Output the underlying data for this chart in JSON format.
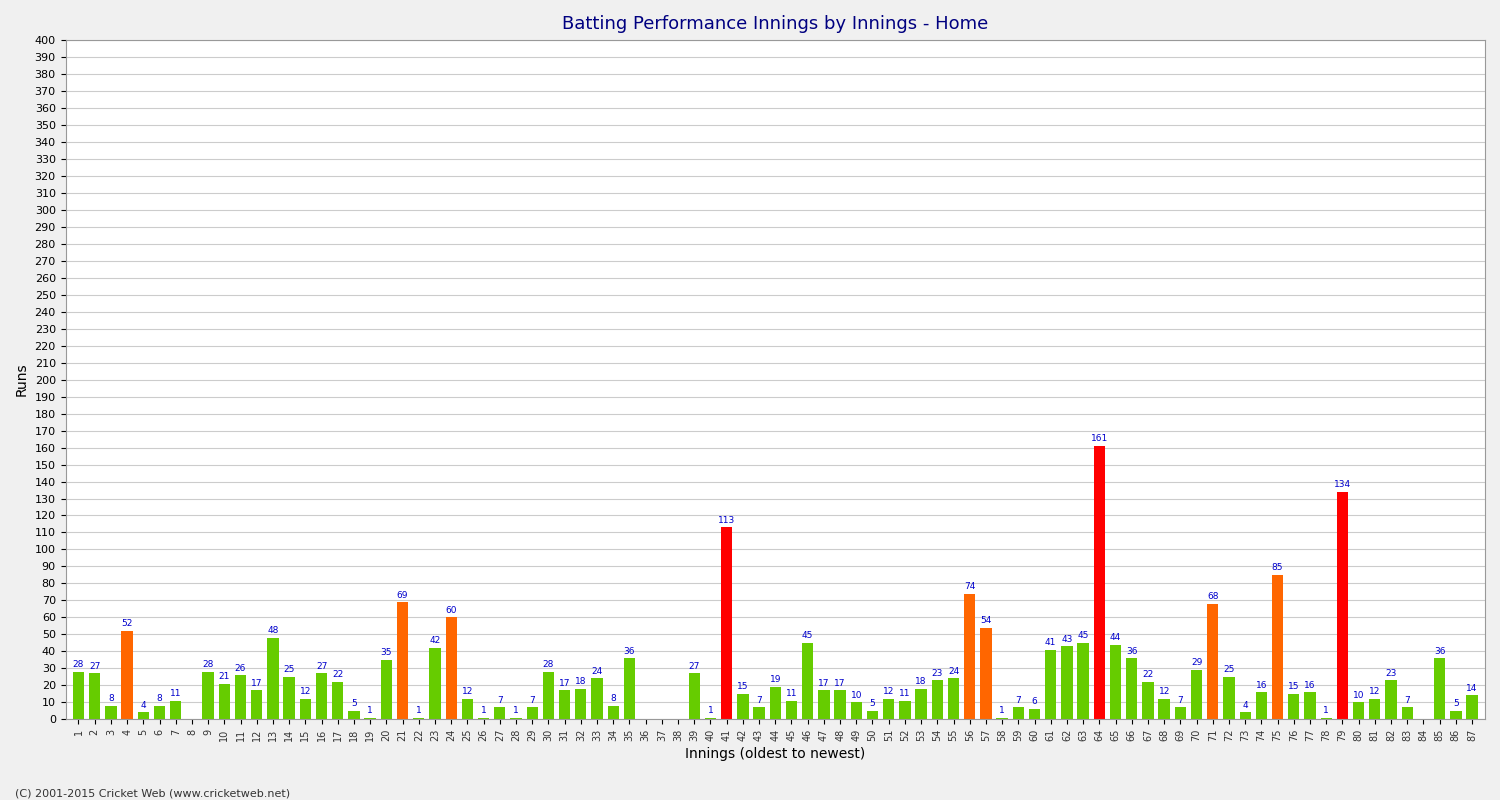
{
  "title": "Batting Performance Innings by Innings - Home",
  "xlabel": "Innings (oldest to newest)",
  "ylabel": "Runs",
  "footer": "(C) 2001-2015 Cricket Web (www.cricketweb.net)",
  "innings": [
    1,
    2,
    3,
    4,
    5,
    6,
    7,
    8,
    9,
    10,
    11,
    12,
    13,
    14,
    15,
    16,
    17,
    18,
    19,
    20,
    21,
    22,
    23,
    24,
    25,
    26,
    27,
    28,
    29,
    30,
    31,
    32,
    33,
    34,
    35,
    36,
    37,
    38,
    39,
    40,
    41,
    42,
    43,
    44,
    45,
    46,
    47,
    48,
    49,
    50,
    51,
    52,
    53,
    54,
    55,
    56,
    57,
    58,
    59,
    60,
    61,
    62,
    63,
    64,
    65,
    66,
    67,
    68,
    69,
    70,
    71,
    72,
    73,
    74,
    75,
    76,
    77,
    78,
    79,
    80,
    81,
    82,
    83,
    84,
    85,
    86,
    87
  ],
  "scores": [
    28,
    27,
    8,
    52,
    4,
    8,
    11,
    0,
    28,
    21,
    26,
    17,
    48,
    25,
    12,
    27,
    22,
    5,
    1,
    35,
    69,
    1,
    42,
    60,
    12,
    1,
    7,
    1,
    7,
    28,
    17,
    18,
    24,
    8,
    36,
    0,
    0,
    0,
    27,
    1,
    113,
    15,
    7,
    19,
    11,
    45,
    17,
    17,
    10,
    5,
    12,
    11,
    18,
    23,
    24,
    74,
    54,
    1,
    7,
    6,
    41,
    43,
    45,
    161,
    44,
    36,
    22,
    12,
    7,
    29,
    68,
    25,
    4,
    16,
    85,
    15,
    16,
    1,
    134,
    10,
    12,
    23,
    7,
    0,
    36,
    5,
    14
  ],
  "colors": [
    "#66cc00",
    "#66cc00",
    "#66cc00",
    "#ff6600",
    "#66cc00",
    "#66cc00",
    "#66cc00",
    "#66cc00",
    "#66cc00",
    "#66cc00",
    "#66cc00",
    "#66cc00",
    "#66cc00",
    "#66cc00",
    "#66cc00",
    "#66cc00",
    "#66cc00",
    "#66cc00",
    "#66cc00",
    "#66cc00",
    "#ff6600",
    "#66cc00",
    "#66cc00",
    "#ff6600",
    "#66cc00",
    "#66cc00",
    "#66cc00",
    "#66cc00",
    "#66cc00",
    "#66cc00",
    "#66cc00",
    "#66cc00",
    "#66cc00",
    "#66cc00",
    "#66cc00",
    "#66cc00",
    "#66cc00",
    "#66cc00",
    "#66cc00",
    "#66cc00",
    "#ff0000",
    "#66cc00",
    "#66cc00",
    "#66cc00",
    "#66cc00",
    "#66cc00",
    "#66cc00",
    "#66cc00",
    "#66cc00",
    "#66cc00",
    "#66cc00",
    "#66cc00",
    "#66cc00",
    "#66cc00",
    "#66cc00",
    "#ff6600",
    "#ff6600",
    "#66cc00",
    "#66cc00",
    "#66cc00",
    "#66cc00",
    "#66cc00",
    "#66cc00",
    "#ff0000",
    "#66cc00",
    "#66cc00",
    "#66cc00",
    "#66cc00",
    "#66cc00",
    "#66cc00",
    "#ff6600",
    "#66cc00",
    "#66cc00",
    "#66cc00",
    "#ff6600",
    "#66cc00",
    "#66cc00",
    "#66cc00",
    "#ff0000",
    "#66cc00",
    "#66cc00",
    "#66cc00",
    "#66cc00",
    "#66cc00",
    "#66cc00",
    "#66cc00",
    "#66cc00"
  ],
  "bg_color": "#f0f0f0",
  "plot_bg": "#ffffff",
  "grid_color": "#cccccc",
  "bar_width": 0.7,
  "label_color": "#0000cc",
  "title_color": "#000080"
}
